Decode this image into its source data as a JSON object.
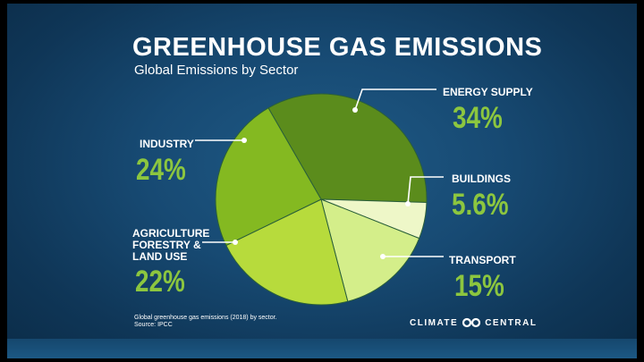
{
  "title": "GREENHOUSE GAS EMISSIONS",
  "subtitle": "Global Emissions by Sector",
  "source_line1": "Global greenhouse gas emissions (2018) by sector.",
  "source_line2": "Source: IPCC",
  "brand_left": "CLIMATE",
  "brand_right": "CENTRAL",
  "colors": {
    "label_text": "#ffffff",
    "percent_green": "#8cc63f",
    "leader_line": "#ffffff",
    "slice_border": "#2a5f3a"
  },
  "chart_data": {
    "type": "pie",
    "slices": [
      {
        "label": "ENERGY SUPPLY",
        "value": 34,
        "display": "34%",
        "color": "#5b8c1c"
      },
      {
        "label": "BUILDINGS",
        "value": 5.6,
        "display": "5.6%",
        "color": "#eef7c8"
      },
      {
        "label": "TRANSPORT",
        "value": 15,
        "display": "15%",
        "color": "#d4ee8a"
      },
      {
        "label": "AGRICULTURE FORESTRY & LAND USE",
        "value": 22,
        "display": "22%",
        "color": "#b7db3c"
      },
      {
        "label": "INDUSTRY",
        "value": 24,
        "display": "24%",
        "color": "#84b921"
      }
    ]
  }
}
